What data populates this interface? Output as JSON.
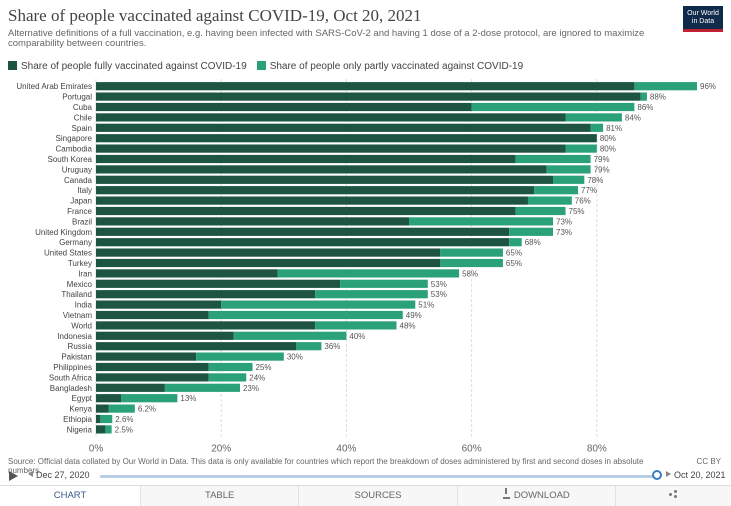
{
  "header": {
    "title": "Share of people vaccinated against COVID-19, Oct 20, 2021",
    "subtitle": "Alternative definitions of a full vaccination, e.g. having been infected with SARS-CoV-2 and having 1 dose of a 2-dose protocol, are ignored to maximize comparability between countries.",
    "logo_line1": "Our World",
    "logo_line2": "in Data"
  },
  "colors": {
    "full": "#1e5442",
    "partial": "#2aa179",
    "grid": "#dddddd"
  },
  "chart_data": {
    "type": "bar",
    "orientation": "horizontal",
    "stacked": true,
    "series": [
      {
        "name": "Share of people fully vaccinated against COVID-19",
        "values": [
          86,
          87,
          60,
          75,
          79,
          80,
          75,
          67,
          72,
          73,
          70,
          69,
          67,
          50,
          66,
          66,
          55,
          55,
          29,
          39,
          35,
          20,
          18,
          35,
          22,
          32,
          16,
          18,
          18,
          11,
          4,
          2,
          0.7,
          1.5
        ]
      },
      {
        "name": "Share of people only partly vaccinated against COVID-19",
        "values": [
          10,
          1,
          26,
          9,
          2,
          0,
          5,
          12,
          7,
          5,
          7,
          7,
          8,
          23,
          7,
          2,
          10,
          10,
          29,
          14,
          18,
          31,
          31,
          13,
          18,
          4,
          14,
          7,
          6,
          12,
          9,
          4.2,
          1.9,
          1
        ]
      }
    ],
    "categories": [
      "United Arab Emirates",
      "Portugal",
      "Cuba",
      "Chile",
      "Spain",
      "Singapore",
      "Cambodia",
      "South Korea",
      "Uruguay",
      "Canada",
      "Italy",
      "Japan",
      "France",
      "Brazil",
      "United Kingdom",
      "Germany",
      "United States",
      "Turkey",
      "Iran",
      "Mexico",
      "Thailand",
      "India",
      "Vietnam",
      "World",
      "Indonesia",
      "Russia",
      "Pakistan",
      "Philippines",
      "South Africa",
      "Bangladesh",
      "Egypt",
      "Kenya",
      "Ethiopia",
      "Nigeria"
    ],
    "totals": [
      96,
      88,
      86,
      84,
      81,
      80,
      80,
      79,
      79,
      78,
      77,
      76,
      75,
      73,
      73,
      68,
      65,
      65,
      58,
      53,
      53,
      51,
      49,
      48,
      40,
      36,
      30,
      25,
      24,
      23,
      13,
      6.2,
      2.6,
      2.5
    ],
    "total_labels": [
      "96%",
      "88%",
      "86%",
      "84%",
      "81%",
      "80%",
      "80%",
      "79%",
      "79%",
      "78%",
      "77%",
      "76%",
      "75%",
      "73%",
      "73%",
      "68%",
      "65%",
      "65%",
      "58%",
      "53%",
      "53%",
      "51%",
      "49%",
      "48%",
      "40%",
      "36%",
      "30%",
      "25%",
      "24%",
      "23%",
      "13%",
      "6.2%",
      "2.6%",
      "2.5%"
    ],
    "x_ticks": [
      0,
      20,
      40,
      60,
      80
    ],
    "x_tick_labels": [
      "0%",
      "20%",
      "40%",
      "60%",
      "80%"
    ],
    "xlim": [
      0,
      96
    ],
    "grid": true,
    "legend_position": "top"
  },
  "footer": {
    "source": "Source: Official data collated by Our World in Data. This data is only available for countries which report the breakdown of doses administered by first and second doses in absolute numbers.",
    "license": "CC BY"
  },
  "timeline": {
    "start": "Dec 27, 2020",
    "end": "Oct 20, 2021",
    "progress": 1.0
  },
  "tabs": {
    "chart": "CHART",
    "table": "TABLE",
    "sources": "SOURCES",
    "download": "DOWNLOAD"
  }
}
